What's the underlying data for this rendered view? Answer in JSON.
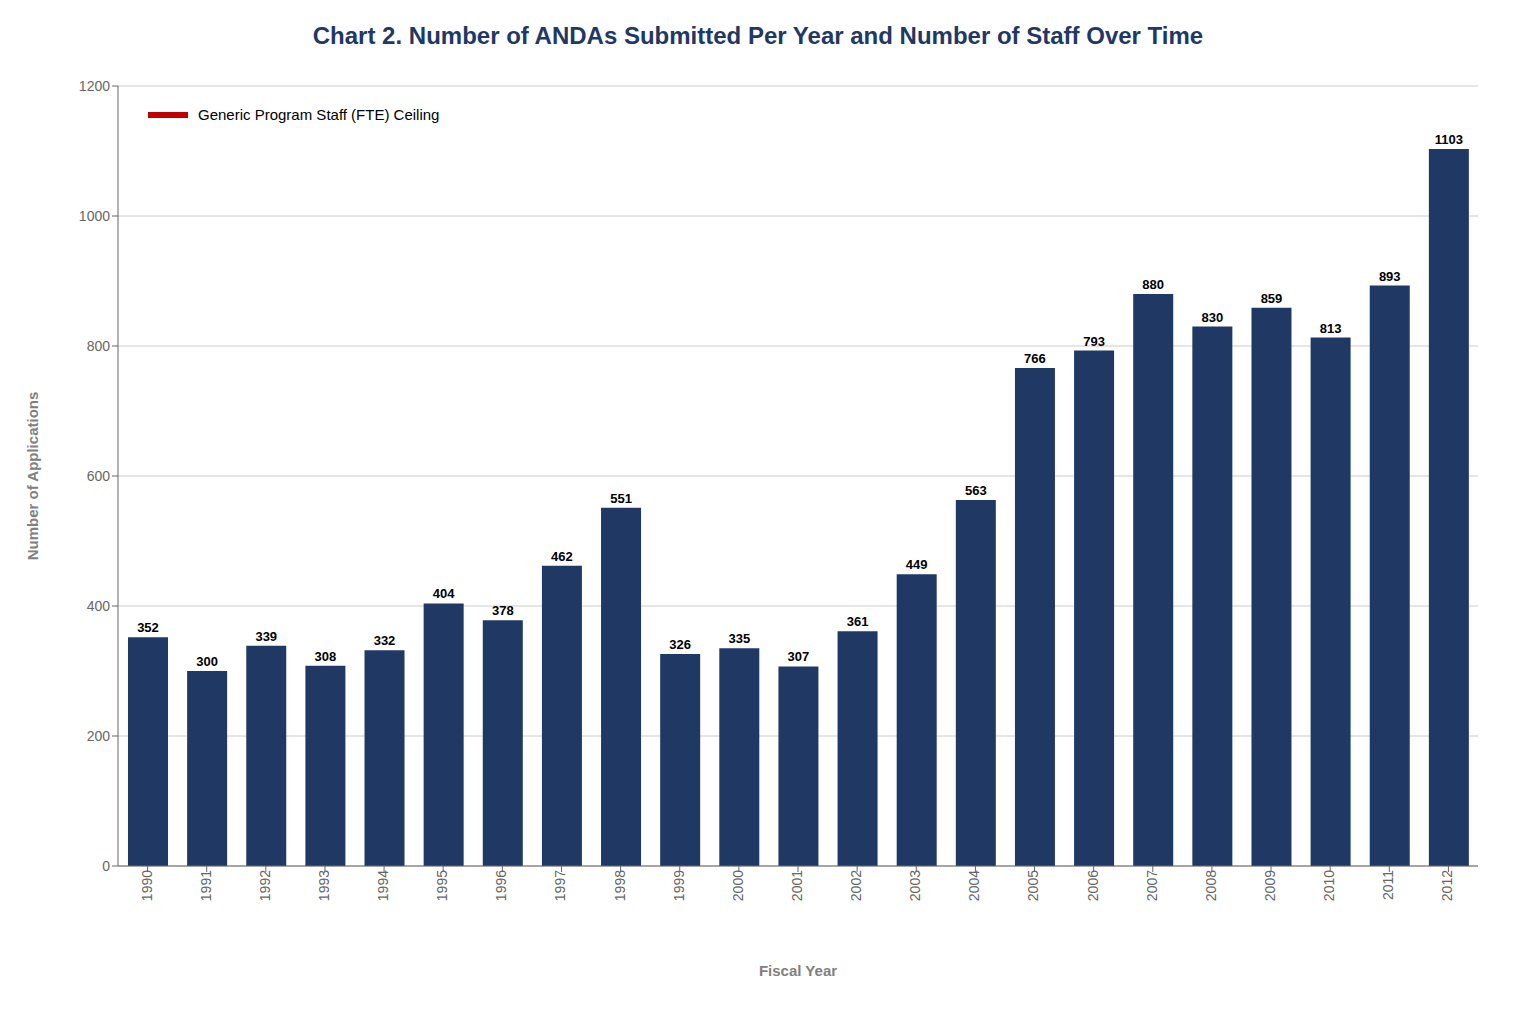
{
  "chart_data": {
    "type": "bar",
    "title": "Chart 2.  Number of ANDAs Submitted Per Year and Number of Staff Over Time",
    "xlabel": "Fiscal Year",
    "ylabel": "Number of Applications",
    "categories": [
      "1990",
      "1991",
      "1992",
      "1993",
      "1994",
      "1995",
      "1996",
      "1997",
      "1998",
      "1999",
      "2000",
      "2001",
      "2002",
      "2003",
      "2004",
      "2005",
      "2006",
      "2007",
      "2008",
      "2009",
      "2010",
      "2011",
      "2012"
    ],
    "values": [
      352,
      300,
      339,
      308,
      332,
      404,
      378,
      462,
      551,
      326,
      335,
      307,
      361,
      449,
      563,
      766,
      793,
      880,
      830,
      859,
      813,
      893,
      1103
    ],
    "color": "#1f3864",
    "ylim": [
      0,
      1200
    ],
    "yticks": [
      0,
      200,
      400,
      600,
      800,
      1000,
      1200
    ],
    "grid": true,
    "data_labels": true,
    "legend": "upper left",
    "series": [
      {
        "name": "Generic Program Staff (FTE) Ceiling",
        "type": "line",
        "color": "#c00000",
        "values": [
          null,
          null,
          null,
          null,
          null,
          null,
          null,
          null,
          null,
          null,
          null,
          null,
          null,
          null,
          null,
          null,
          null,
          null,
          null,
          null,
          null,
          null,
          null
        ]
      }
    ]
  }
}
